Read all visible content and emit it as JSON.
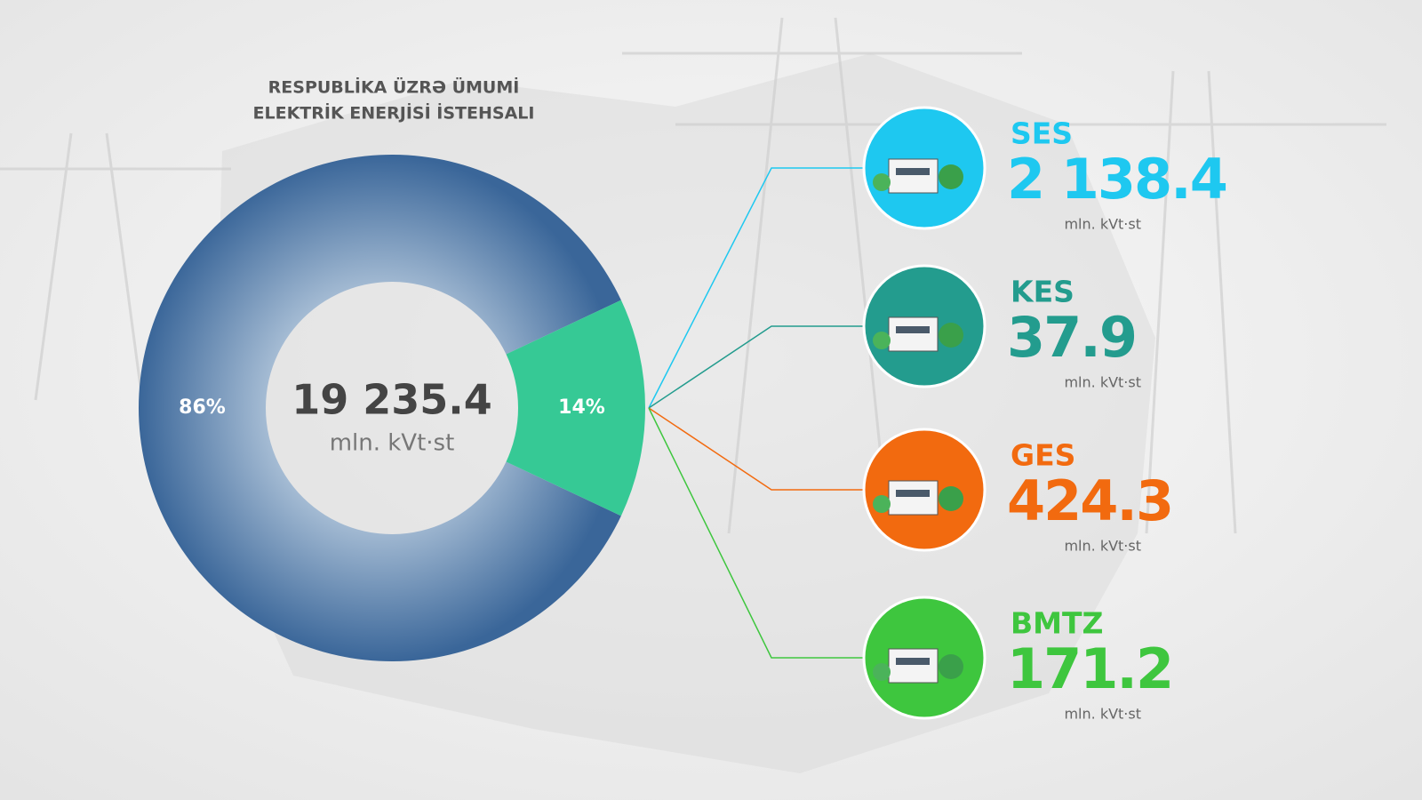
{
  "chart_data": {
    "type": "pie",
    "title": [
      "RESPUBLİKA ÜZRƏ ÜMUMİ",
      "ELEKTRİK ENERJİSİ İSTEHSALI"
    ],
    "center_value": "19 235.4",
    "center_unit": "mln. kVt·st",
    "categories": [
      null,
      null
    ],
    "values": [
      86,
      14
    ],
    "value_labels": [
      "86%",
      "14%"
    ],
    "colors": [
      "#3a6699",
      "#36c995"
    ]
  },
  "items": [
    {
      "name": "SES",
      "value": "2 138.4",
      "unit": "mln. kVt·st",
      "color": "#1ec8f0"
    },
    {
      "name": "KES",
      "value": "37.9",
      "unit": "mln. kVt·st",
      "color": "#239c8e"
    },
    {
      "name": "GES",
      "value": "424.3",
      "unit": "mln. kVt·st",
      "color": "#f26a0f"
    },
    {
      "name": "BMTZ",
      "value": "171.2",
      "unit": "mln. kVt·st",
      "color": "#3ec63e"
    }
  ]
}
